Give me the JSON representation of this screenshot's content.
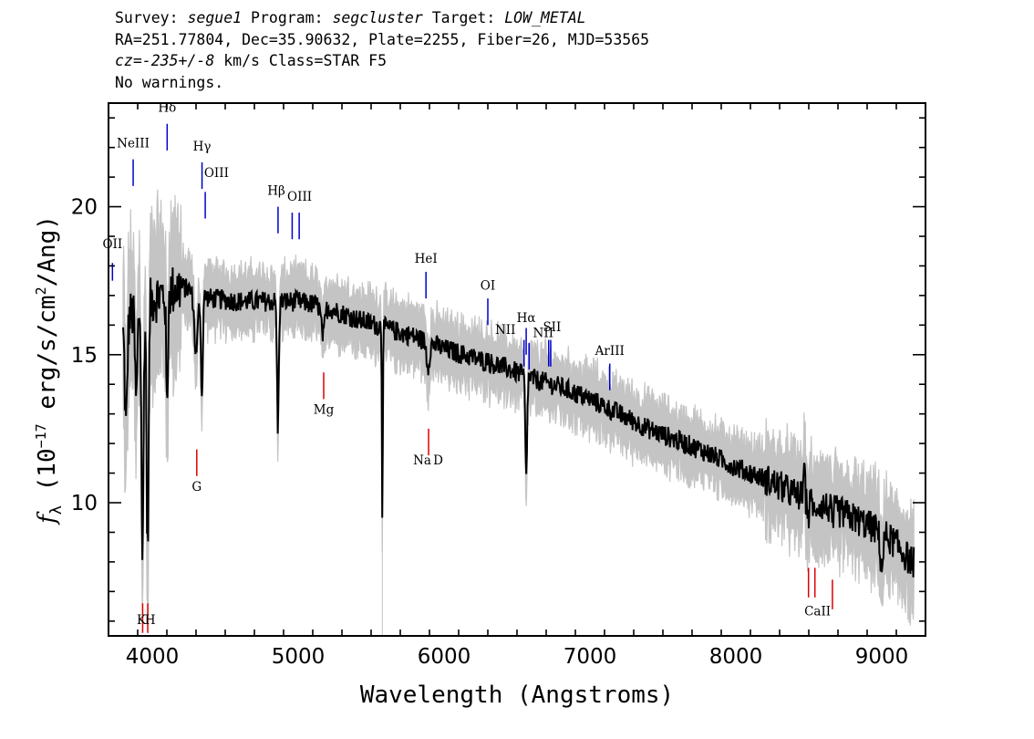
{
  "header": {
    "line1": [
      {
        "text": "Survey: ",
        "italic": false
      },
      {
        "text": "segue1",
        "italic": true
      },
      {
        "text": " Program: ",
        "italic": false
      },
      {
        "text": "segcluster",
        "italic": true
      },
      {
        "text": " Target: ",
        "italic": false
      },
      {
        "text": "LOW_METAL",
        "italic": true
      }
    ],
    "line2": "RA=251.77804, Dec=35.90632, Plate=2255, Fiber=26, MJD=53565",
    "line3": [
      {
        "text": "cz=-235+/-8",
        "italic": true
      },
      {
        "text": " km/s Class=STAR F5",
        "italic": false
      }
    ],
    "line4": "No warnings."
  },
  "chart_data": {
    "type": "line",
    "xlabel": "Wavelength (Angstroms)",
    "ylabel_parts": {
      "f": "f",
      "sub": "λ",
      "pre": " (10",
      "exp1": "−17",
      "mid": " erg/s/cm",
      "exp2": "2",
      "post": "/Ang)"
    },
    "xlim": [
      3700,
      9300
    ],
    "ylim": [
      5.5,
      23.5
    ],
    "xticks": [
      4000,
      5000,
      6000,
      7000,
      8000,
      9000
    ],
    "yticks": [
      10,
      15,
      20
    ],
    "xtick_labels": [
      "4000",
      "5000",
      "6000",
      "7000",
      "8000",
      "9000"
    ],
    "ytick_labels": [
      "10",
      "15",
      "20"
    ],
    "spectrum_continuum": {
      "x": [
        3800,
        3850,
        3900,
        4000,
        4100,
        4200,
        4400,
        4600,
        4800,
        5000,
        5200,
        5400,
        5600,
        5800,
        6000,
        6200,
        6400,
        6600,
        6800,
        7000,
        7200,
        7400,
        7600,
        7800,
        8000,
        8200,
        8400,
        8600,
        8800,
        9000,
        9100,
        9200
      ],
      "y": [
        15.8,
        16.3,
        16.5,
        16.9,
        17.1,
        17.3,
        16.9,
        16.8,
        16.8,
        16.8,
        16.6,
        16.2,
        15.9,
        15.6,
        15.2,
        14.9,
        14.6,
        14.2,
        13.9,
        13.5,
        13.0,
        12.5,
        12.1,
        11.7,
        11.2,
        10.8,
        10.3,
        9.9,
        9.5,
        9.0,
        8.6,
        8.0
      ]
    },
    "spectrum_features": [
      {
        "x": 3820,
        "depth": 3.5,
        "width": 8
      },
      {
        "x": 3890,
        "depth": 3.0,
        "width": 8
      },
      {
        "x": 3933,
        "depth": 8.5,
        "width": 7
      },
      {
        "x": 3968,
        "depth": 8.5,
        "width": 7
      },
      {
        "x": 4101,
        "depth": 4.0,
        "width": 6
      },
      {
        "x": 4300,
        "depth": 2.0,
        "width": 12
      },
      {
        "x": 4340,
        "depth": 3.5,
        "width": 6
      },
      {
        "x": 4861,
        "depth": 4.3,
        "width": 6
      },
      {
        "x": 5170,
        "depth": 1.0,
        "width": 12
      },
      {
        "x": 5577,
        "depth": 6.5,
        "width": 3
      },
      {
        "x": 5890,
        "depth": 0.8,
        "width": 10
      },
      {
        "x": 6563,
        "depth": 3.5,
        "width": 6
      },
      {
        "x": 6300,
        "depth": -0.5,
        "width": 3
      },
      {
        "x": 8498,
        "depth": 0.6,
        "width": 6
      },
      {
        "x": 8542,
        "depth": 0.6,
        "width": 6
      },
      {
        "x": 8662,
        "depth": 0.6,
        "width": 6
      },
      {
        "x": 8470,
        "depth": -2.0,
        "width": 3
      },
      {
        "x": 9000,
        "depth": 1.2,
        "width": 10
      }
    ],
    "emission_lines": [
      {
        "label": "OII",
        "x": 3727,
        "y_top": 18.1,
        "y_bot": 17.5
      },
      {
        "label": "NeIII",
        "x": 3869,
        "y_top": 21.6,
        "y_bot": 20.7
      },
      {
        "label": "Hδ",
        "x": 4102,
        "y_top": 22.8,
        "y_bot": 21.9
      },
      {
        "label": "Hγ",
        "x": 4341,
        "y_top": 21.5,
        "y_bot": 20.6
      },
      {
        "label": "OIII",
        "x": 4363,
        "y_top": 20.5,
        "y_bot": 19.6
      },
      {
        "label": "Hβ",
        "x": 4862,
        "y_top": 20.0,
        "y_bot": 19.1
      },
      {
        "label": "OIII",
        "x": 4959,
        "y_top": 19.8,
        "y_bot": 18.9
      },
      {
        "label": "OIII",
        "x": 5007,
        "y_top": 19.8,
        "y_bot": 18.9
      },
      {
        "label": "HeI",
        "x": 5876,
        "y_top": 17.8,
        "y_bot": 16.9
      },
      {
        "label": "OI",
        "x": 6300,
        "y_top": 16.9,
        "y_bot": 16.0
      },
      {
        "label": "NII",
        "x": 6548,
        "y_top": 15.5,
        "y_bot": 14.6
      },
      {
        "label": "Hα",
        "x": 6563,
        "y_top": 15.9,
        "y_bot": 15.0
      },
      {
        "label": "NII",
        "x": 6583,
        "y_top": 15.4,
        "y_bot": 14.5
      },
      {
        "label": "SII",
        "x": 6717,
        "y_top": 15.5,
        "y_bot": 14.6
      },
      {
        "label": "SII",
        "x": 6731,
        "y_top": 15.5,
        "y_bot": 14.6
      },
      {
        "label": "ArIII",
        "x": 7136,
        "y_top": 14.7,
        "y_bot": 13.8
      }
    ],
    "emission_labels": [
      {
        "text": "OII",
        "x": 3727,
        "y": 18.6
      },
      {
        "text": "NeIII",
        "x": 3869,
        "y": 22.0
      },
      {
        "text": "Hδ",
        "x": 4102,
        "y": 23.2
      },
      {
        "text": "Hγ",
        "x": 4341,
        "y": 21.9
      },
      {
        "text": "OIII",
        "x": 4440,
        "y": 21.0
      },
      {
        "text": "Hβ",
        "x": 4850,
        "y": 20.4
      },
      {
        "text": "OIII",
        "x": 5010,
        "y": 20.2
      },
      {
        "text": "HeI",
        "x": 5876,
        "y": 18.1
      },
      {
        "text": "OI",
        "x": 6300,
        "y": 17.2
      },
      {
        "text": "Hα",
        "x": 6563,
        "y": 16.1
      },
      {
        "text": "NII",
        "x": 6420,
        "y": 15.7
      },
      {
        "text": "NII",
        "x": 6680,
        "y": 15.6
      },
      {
        "text": "SII",
        "x": 6740,
        "y": 15.8
      },
      {
        "text": "ArIII",
        "x": 7136,
        "y": 15.0
      }
    ],
    "absorption_lines": [
      {
        "label": "K",
        "x": 3934,
        "y_top": 6.6,
        "y_bot": 5.6
      },
      {
        "label": "H",
        "x": 3969,
        "y_top": 6.6,
        "y_bot": 5.6
      },
      {
        "label": "G",
        "x": 4305,
        "y_top": 11.8,
        "y_bot": 10.9
      },
      {
        "label": "Mg",
        "x": 5175,
        "y_top": 14.4,
        "y_bot": 13.5
      },
      {
        "label": "Na",
        "x": 5894,
        "y_top": 12.5,
        "y_bot": 11.6
      },
      {
        "label": "CaII",
        "x": 8498,
        "y_top": 7.8,
        "y_bot": 6.8
      },
      {
        "label": "CaII",
        "x": 8542,
        "y_top": 7.8,
        "y_bot": 6.8
      },
      {
        "label": "CaII",
        "x": 8662,
        "y_top": 7.4,
        "y_bot": 6.4
      }
    ],
    "absorption_labels": [
      {
        "text": "K",
        "x": 3925,
        "y": 5.9
      },
      {
        "text": "H",
        "x": 3985,
        "y": 5.9
      },
      {
        "text": "G",
        "x": 4305,
        "y": 10.4
      },
      {
        "text": "Mg",
        "x": 5175,
        "y": 13.0
      },
      {
        "text": "Na",
        "x": 5850,
        "y": 11.3
      },
      {
        "text": "D",
        "x": 5960,
        "y": 11.3
      },
      {
        "text": "CaII",
        "x": 8560,
        "y": 6.2
      }
    ],
    "colors": {
      "spectrum": "#000000",
      "noise": "#c4c4c4",
      "emission": "#0000cc",
      "absorption": "#dd0000",
      "axis": "#000000"
    }
  }
}
